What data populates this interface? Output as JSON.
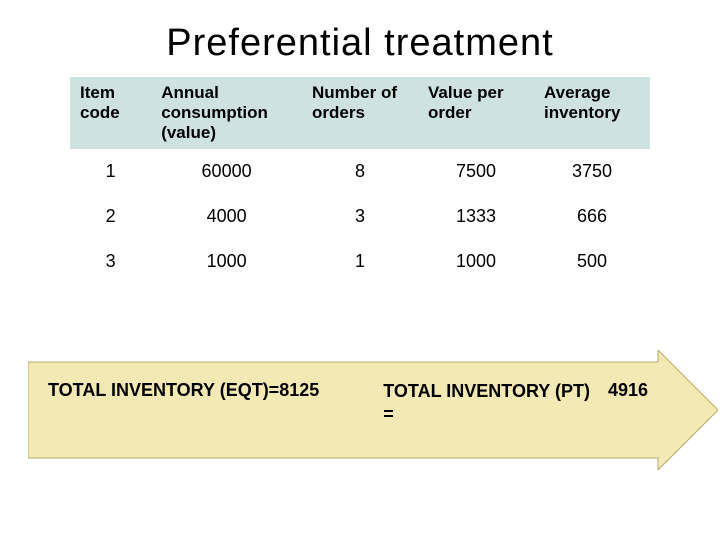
{
  "title": "Preferential  treatment",
  "table": {
    "columns": [
      "Item code",
      "Annual consumption (value)",
      "Number of orders",
      "Value per order",
      "Average inventory"
    ],
    "col_widths_pct": [
      14,
      26,
      20,
      20,
      20
    ],
    "header_bg": "#cfe2e2",
    "header_fontsize": 17,
    "cell_fontsize": 18,
    "text_color": "#000000",
    "rows": [
      [
        "1",
        "60000",
        "8",
        "7500",
        "3750"
      ],
      [
        "2",
        "4000",
        "3",
        "1333",
        "666"
      ],
      [
        "3",
        "1000",
        "1",
        "1000",
        "500"
      ]
    ]
  },
  "arrow": {
    "fill": "#f3e9b4",
    "stroke": "#b8a968",
    "left_label": "TOTAL INVENTORY  (EQT)=",
    "left_value": "8125",
    "right_label_line1": "TOTAL INVENTORY (PT)",
    "right_label_line2": "=",
    "right_value": "4916",
    "label_fontsize": 18,
    "label_color": "#000000"
  },
  "background_color": "#ffffff"
}
